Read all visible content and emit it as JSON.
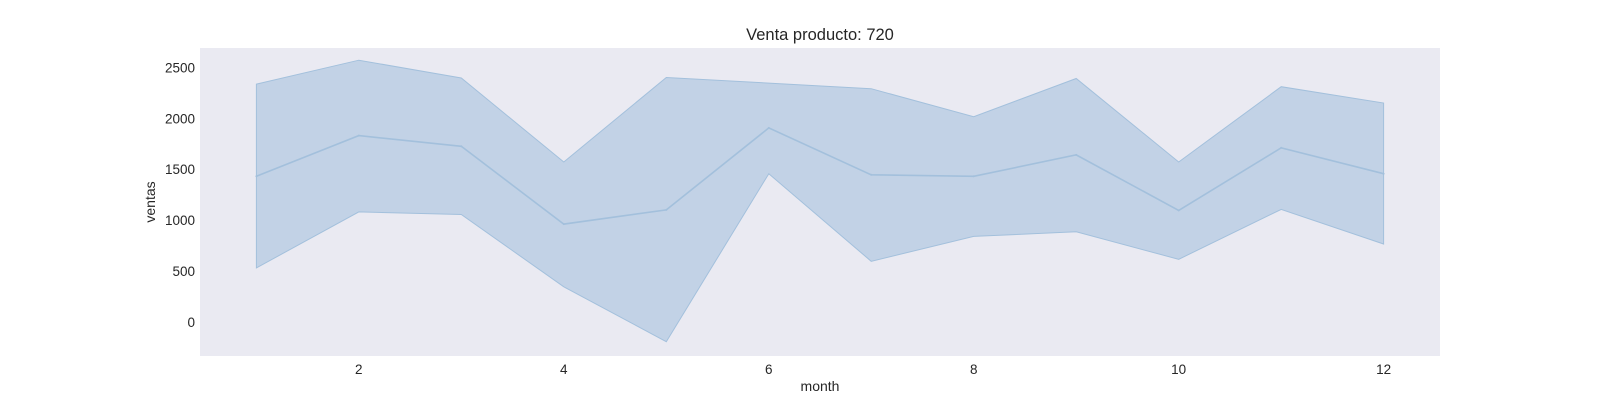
{
  "chart_data": {
    "type": "line",
    "title": "Venta producto: 720",
    "xlabel": "month",
    "ylabel": "ventas",
    "x": [
      1,
      2,
      3,
      4,
      5,
      6,
      7,
      8,
      9,
      10,
      11,
      12
    ],
    "xlim": [
      0.45,
      12.55
    ],
    "ylim": [
      -335,
      2690
    ],
    "xticks": [
      2,
      4,
      6,
      8,
      10,
      12
    ],
    "yticks": [
      0,
      500,
      1000,
      1500,
      2000,
      2500
    ],
    "grid": false,
    "series": [
      {
        "values": [
          1430,
          1830,
          1725,
          960,
          1100,
          1905,
          1445,
          1430,
          1640,
          1095,
          1710,
          1455
        ],
        "band_lower": [
          530,
          1080,
          1055,
          345,
          -195,
          1455,
          595,
          840,
          885,
          615,
          1105,
          765
        ],
        "band_upper": [
          2335,
          2570,
          2395,
          1570,
          2400,
          2345,
          2290,
          2015,
          2390,
          1570,
          2310,
          2150
        ]
      }
    ],
    "colors": {
      "plot_background": "#eaeaf2",
      "band_fill": "#a9c4de",
      "line": "#a3c0dc",
      "text": "#262626"
    }
  }
}
